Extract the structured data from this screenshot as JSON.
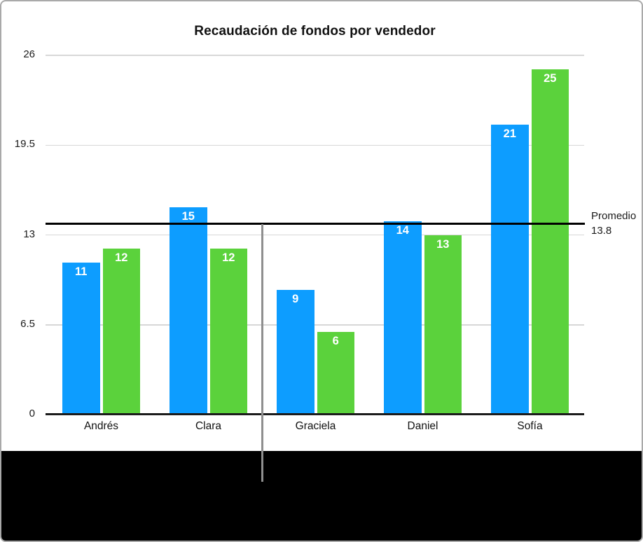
{
  "figure": {
    "border_color": "#a9a9a9",
    "background": "#ffffff",
    "bottom_band_color": "#000000",
    "callout_line_color": "#8f8f8f"
  },
  "chart_data": {
    "type": "bar",
    "title": "Recaudación de fondos por vendedor",
    "categories": [
      "Andrés",
      "Clara",
      "Graciela",
      "Daniel",
      "Sofía"
    ],
    "series": [
      {
        "name": "blue",
        "color": "#0d9dff",
        "values": [
          11,
          15,
          9,
          14,
          21
        ]
      },
      {
        "name": "green",
        "color": "#5bd23c",
        "values": [
          12,
          12,
          6,
          13,
          25
        ]
      }
    ],
    "y_ticks": [
      0,
      6.5,
      13,
      19.5,
      26
    ],
    "ylim": [
      0,
      26
    ],
    "grid": true,
    "legend": "none",
    "value_labels_position": "inside-top",
    "value_label_color": "#ffffff",
    "average_line": {
      "value": 13.8,
      "color": "#000000",
      "label": "Promedio",
      "value_text": "13.8",
      "label_position": "right"
    }
  }
}
